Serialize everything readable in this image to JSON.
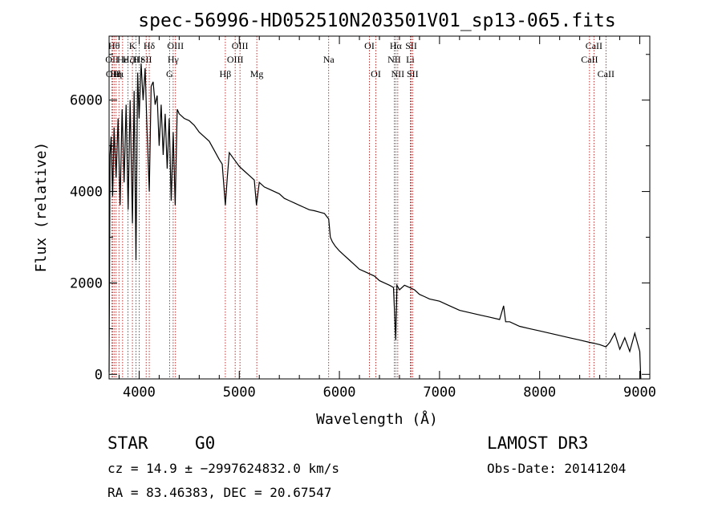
{
  "chart_data": {
    "type": "line",
    "title": "spec-56996-HD052510N203501V01_sp13-065.fits",
    "xlabel": "Wavelength (Å)",
    "ylabel": "Flux (relative)",
    "xlim": [
      3700,
      9100
    ],
    "ylim": [
      -100,
      7400
    ],
    "xticks": [
      4000,
      5000,
      6000,
      7000,
      8000,
      9000
    ],
    "xtick_labels": [
      "4000",
      "5000",
      "6000",
      "7000",
      "8000",
      "9000"
    ],
    "yticks": [
      0,
      2000,
      4000,
      6000
    ],
    "ytick_labels": [
      "0",
      "2000",
      "4000",
      "6000"
    ],
    "grid": false,
    "series": [
      {
        "name": "flux",
        "color": "#000000",
        "x": [
          3700,
          3710,
          3720,
          3735,
          3750,
          3770,
          3790,
          3810,
          3830,
          3850,
          3870,
          3890,
          3910,
          3933,
          3950,
          3968,
          3985,
          4000,
          4020,
          4040,
          4060,
          4080,
          4101,
          4120,
          4140,
          4160,
          4180,
          4200,
          4220,
          4240,
          4260,
          4280,
          4300,
          4320,
          4340,
          4360,
          4380,
          4400,
          4450,
          4500,
          4550,
          4600,
          4650,
          4700,
          4750,
          4800,
          4830,
          4861,
          4880,
          4900,
          4950,
          5000,
          5050,
          5100,
          5150,
          5172,
          5200,
          5250,
          5300,
          5350,
          5400,
          5450,
          5500,
          5550,
          5600,
          5650,
          5700,
          5750,
          5800,
          5850,
          5893,
          5910,
          5930,
          5960,
          6000,
          6050,
          6100,
          6150,
          6200,
          6250,
          6300,
          6350,
          6400,
          6450,
          6500,
          6540,
          6563,
          6575,
          6600,
          6650,
          6700,
          6750,
          6800,
          6850,
          6900,
          7000,
          7100,
          7200,
          7300,
          7400,
          7500,
          7600,
          7640,
          7660,
          7700,
          7800,
          7900,
          8000,
          8100,
          8200,
          8300,
          8400,
          8498,
          8542,
          8600,
          8662,
          8700,
          8750,
          8800,
          8850,
          8900,
          8950,
          9000,
          9010
        ],
        "y": [
          50,
          4800,
          5200,
          3900,
          5400,
          4300,
          5600,
          3700,
          5800,
          4200,
          5900,
          3600,
          6000,
          3300,
          6200,
          2500,
          6600,
          5600,
          6800,
          6000,
          6700,
          5300,
          4000,
          6300,
          6400,
          5900,
          6100,
          5000,
          5900,
          4800,
          5700,
          4500,
          5600,
          3800,
          5300,
          3700,
          5800,
          5700,
          5600,
          5550,
          5450,
          5300,
          5200,
          5100,
          4900,
          4700,
          4600,
          3700,
          4300,
          4850,
          4700,
          4550,
          4450,
          4350,
          4250,
          3700,
          4200,
          4100,
          4050,
          4000,
          3950,
          3850,
          3800,
          3750,
          3700,
          3650,
          3600,
          3580,
          3550,
          3520,
          3400,
          3000,
          2900,
          2800,
          2700,
          2600,
          2500,
          2400,
          2300,
          2250,
          2200,
          2150,
          2050,
          2000,
          1950,
          1900,
          750,
          1950,
          1850,
          1950,
          1900,
          1850,
          1750,
          1700,
          1650,
          1600,
          1500,
          1400,
          1350,
          1300,
          1250,
          1200,
          1500,
          1150,
          1150,
          1050,
          1000,
          950,
          900,
          850,
          800,
          750,
          700,
          680,
          650,
          600,
          700,
          900,
          550,
          800,
          500,
          900,
          500,
          -100
        ]
      }
    ],
    "lines": [
      {
        "w": 3729,
        "label": "OII",
        "row": 1
      },
      {
        "w": 3734,
        "label": "OII",
        "row": 2
      },
      {
        "w": 3750,
        "label": "Hθ",
        "row": 0
      },
      {
        "w": 3770,
        "label": "Hη",
        "row": 2
      },
      {
        "w": 3798,
        "label": "Hι",
        "row": 2
      },
      {
        "w": 3835,
        "label": "Hε",
        "row": 1
      },
      {
        "w": 3889,
        "label": "Hζ",
        "row": 1
      },
      {
        "w": 3933,
        "label": "K",
        "row": 0
      },
      {
        "w": 3968,
        "label": "H",
        "row": 1
      },
      {
        "w": 4000,
        "label": "Hε",
        "row": 1
      },
      {
        "w": 4070,
        "label": "SII",
        "row": 1
      },
      {
        "w": 4101,
        "label": "Hδ",
        "row": 0
      },
      {
        "w": 4304,
        "label": "G",
        "row": 2
      },
      {
        "w": 4340,
        "label": "Hγ",
        "row": 1
      },
      {
        "w": 4363,
        "label": "OIII",
        "row": 0
      },
      {
        "w": 4861,
        "label": "Hβ",
        "row": 2
      },
      {
        "w": 4959,
        "label": "OIII",
        "row": 1
      },
      {
        "w": 5007,
        "label": "OIII",
        "row": 0
      },
      {
        "w": 5175,
        "label": "Mg",
        "row": 2
      },
      {
        "w": 5893,
        "label": "Na",
        "row": 1
      },
      {
        "w": 6300,
        "label": "OI",
        "row": 0
      },
      {
        "w": 6364,
        "label": "OI",
        "row": 2
      },
      {
        "w": 6548,
        "label": "NII",
        "row": 1
      },
      {
        "w": 6563,
        "label": "Hα",
        "row": 0
      },
      {
        "w": 6583,
        "label": "NII",
        "row": 2
      },
      {
        "w": 6708,
        "label": "Li",
        "row": 1
      },
      {
        "w": 6717,
        "label": "SII",
        "row": 0
      },
      {
        "w": 6731,
        "label": "SII",
        "row": 2
      },
      {
        "w": 8498,
        "label": "CaII",
        "row": 1
      },
      {
        "w": 8542,
        "label": "CaII",
        "row": 0
      },
      {
        "w": 8662,
        "label": "CaII",
        "row": 2
      }
    ]
  },
  "info": {
    "object_type": "STAR",
    "subclass": "G0",
    "survey": "LAMOST DR3",
    "cz_line": "cz = 14.9 ± −2997624832.0 km/s",
    "obs_date": "Obs-Date: 20141204",
    "coords": "RA =  83.46383, DEC =  20.67547"
  }
}
